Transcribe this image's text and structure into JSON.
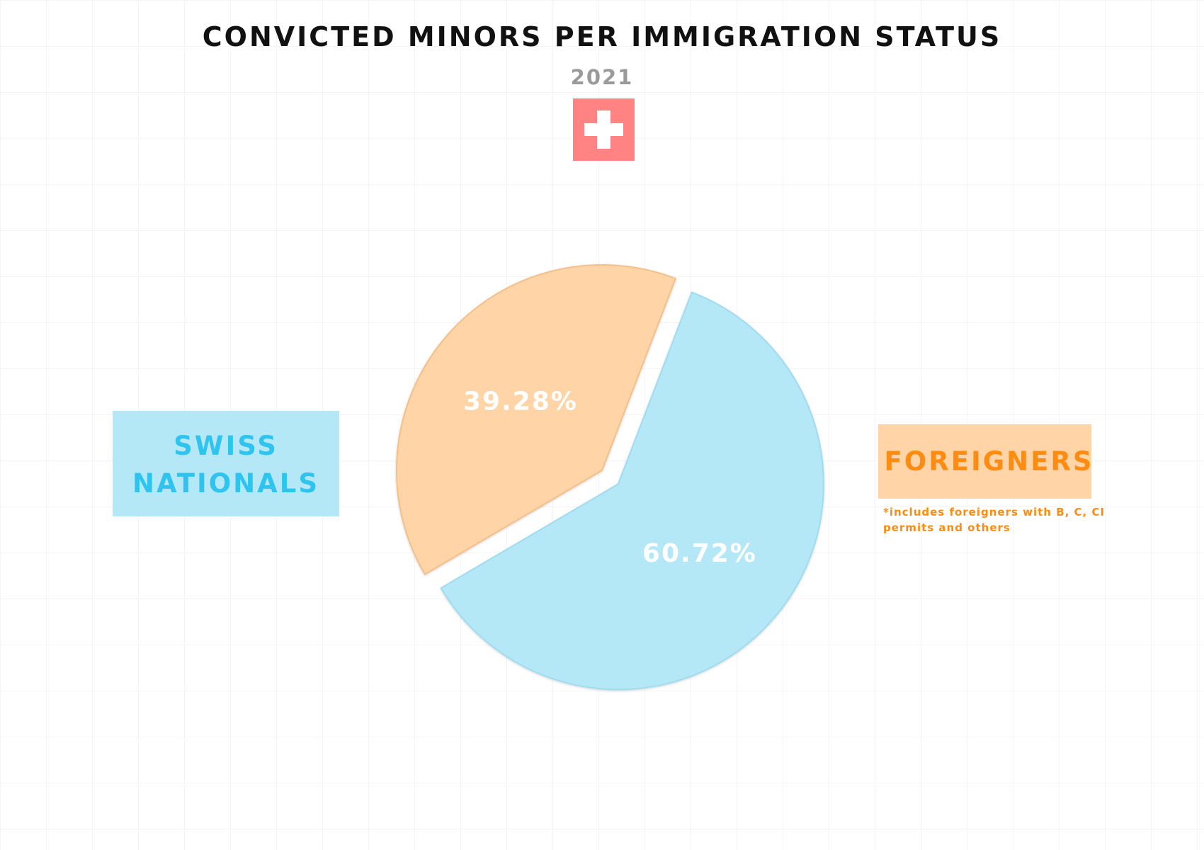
{
  "chart_data": {
    "type": "pie",
    "title": "CONVICTED MINORS PER IMMIGRATION STATUS",
    "subtitle": "2021",
    "slices": [
      {
        "label": "SWISS NATIONALS",
        "value": 60.72,
        "value_label": "60.72%",
        "color": "#b5e8f7",
        "text_color": "#2ec4ef",
        "explode": true
      },
      {
        "label": "FOREIGNERS",
        "value": 39.28,
        "value_label": "39.28%",
        "color": "#ffd4a6",
        "text_color": "#ff8c12",
        "explode": false
      }
    ],
    "footnote": "*includes foreigners with B, C, CI permits and others"
  },
  "flag": {
    "icon": "swiss-flag-icon",
    "color": "#ff8383",
    "cross_color": "#ffffff"
  }
}
